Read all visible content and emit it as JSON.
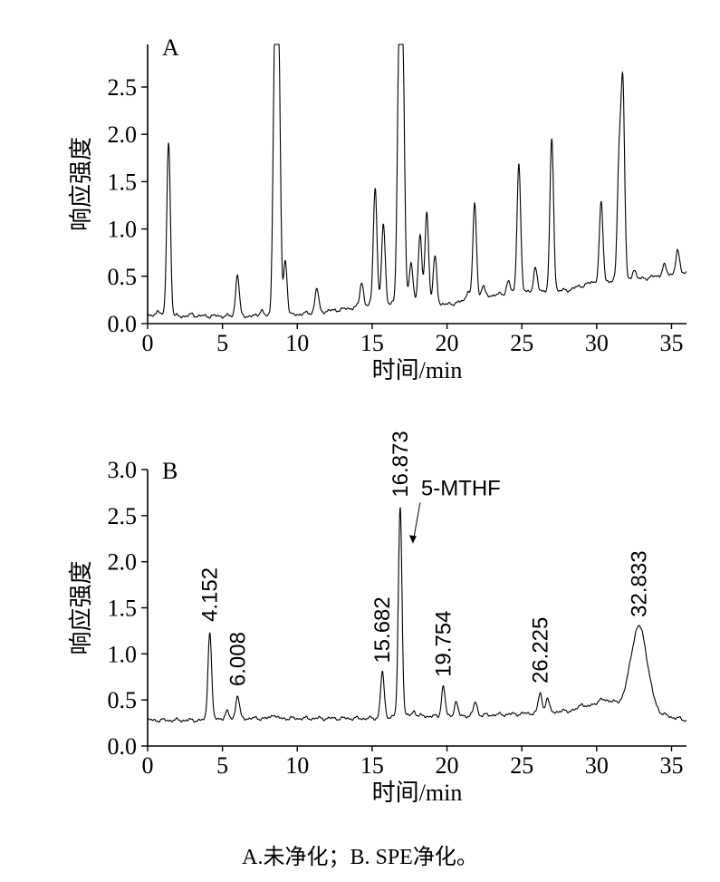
{
  "caption": "A.未净化；B. SPE净化。",
  "chart_data": [
    {
      "type": "line",
      "panel_label": "A",
      "xlabel": "时间/min",
      "ylabel": "响应强度",
      "xlim": [
        0,
        36
      ],
      "ylim": [
        0,
        2.95
      ],
      "xticks": [
        0,
        5,
        10,
        15,
        20,
        25,
        30,
        35
      ],
      "yticks": [
        0.0,
        0.5,
        1.0,
        1.5,
        2.0,
        2.5
      ],
      "ytick_labels": [
        "0.0",
        "0.5",
        "1.0",
        "1.5",
        "2.0",
        "2.5"
      ],
      "baseline": [
        [
          0,
          0.08
        ],
        [
          6,
          0.08
        ],
        [
          9,
          0.08
        ],
        [
          13,
          0.15
        ],
        [
          15,
          0.2
        ],
        [
          18,
          0.25
        ],
        [
          20,
          0.2
        ],
        [
          23,
          0.3
        ],
        [
          26,
          0.35
        ],
        [
          28,
          0.35
        ],
        [
          30,
          0.45
        ],
        [
          32,
          0.45
        ],
        [
          34,
          0.5
        ],
        [
          36,
          0.55
        ]
      ],
      "peaks": [
        {
          "t": 0.7,
          "h": 0.15
        },
        {
          "t": 1.4,
          "h": 1.92
        },
        {
          "t": 3.0,
          "h": 0.1
        },
        {
          "t": 6.0,
          "h": 0.52
        },
        {
          "t": 7.6,
          "h": 0.15
        },
        {
          "t": 8.5,
          "h": 2.95
        },
        {
          "t": 8.75,
          "h": 2.95
        },
        {
          "t": 9.2,
          "h": 0.67
        },
        {
          "t": 11.3,
          "h": 0.37
        },
        {
          "t": 14.3,
          "h": 0.44
        },
        {
          "t": 15.2,
          "h": 1.45
        },
        {
          "t": 15.75,
          "h": 1.04
        },
        {
          "t": 16.8,
          "h": 2.87
        },
        {
          "t": 17.05,
          "h": 2.79
        },
        {
          "t": 17.6,
          "h": 0.64
        },
        {
          "t": 18.2,
          "h": 0.92
        },
        {
          "t": 18.65,
          "h": 1.18
        },
        {
          "t": 19.2,
          "h": 0.7
        },
        {
          "t": 21.4,
          "h": 0.35
        },
        {
          "t": 21.85,
          "h": 1.27
        },
        {
          "t": 22.4,
          "h": 0.4
        },
        {
          "t": 24.1,
          "h": 0.45
        },
        {
          "t": 24.8,
          "h": 1.7
        },
        {
          "t": 25.9,
          "h": 0.58
        },
        {
          "t": 27.0,
          "h": 1.95
        },
        {
          "t": 30.3,
          "h": 1.27
        },
        {
          "t": 31.5,
          "h": 1.72
        },
        {
          "t": 31.75,
          "h": 2.48
        },
        {
          "t": 32.5,
          "h": 0.58
        },
        {
          "t": 34.5,
          "h": 0.62
        },
        {
          "t": 35.4,
          "h": 0.77
        }
      ]
    },
    {
      "type": "line",
      "panel_label": "B",
      "xlabel": "时间/min",
      "ylabel": "响应强度",
      "xlim": [
        0,
        36
      ],
      "ylim": [
        0,
        3.0
      ],
      "xticks": [
        0,
        5,
        10,
        15,
        20,
        25,
        30,
        35
      ],
      "yticks": [
        0.0,
        0.5,
        1.0,
        1.5,
        2.0,
        2.5,
        3.0
      ],
      "ytick_labels": [
        "0.0",
        "0.5",
        "1.0",
        "1.5",
        "2.0",
        "2.5",
        "3.0"
      ],
      "baseline": [
        [
          0,
          0.28
        ],
        [
          4,
          0.28
        ],
        [
          5,
          0.3
        ],
        [
          8,
          0.3
        ],
        [
          15,
          0.3
        ],
        [
          17,
          0.33
        ],
        [
          20,
          0.32
        ],
        [
          25,
          0.35
        ],
        [
          28,
          0.38
        ],
        [
          31,
          0.45
        ],
        [
          34,
          0.35
        ],
        [
          36,
          0.28
        ]
      ],
      "peaks": [
        {
          "t": 4.152,
          "h": 1.25
        },
        {
          "t": 5.3,
          "h": 0.37
        },
        {
          "t": 6.008,
          "h": 0.55
        },
        {
          "t": 8.4,
          "h": 0.35
        },
        {
          "t": 15.682,
          "h": 0.8
        },
        {
          "t": 16.873,
          "h": 2.6
        },
        {
          "t": 17.8,
          "h": 0.38
        },
        {
          "t": 19.754,
          "h": 0.65
        },
        {
          "t": 20.6,
          "h": 0.48
        },
        {
          "t": 21.9,
          "h": 0.48
        },
        {
          "t": 26.225,
          "h": 0.58
        },
        {
          "t": 26.7,
          "h": 0.52
        },
        {
          "t": 29.0,
          "h": 0.47
        },
        {
          "t": 30.4,
          "h": 0.5
        },
        {
          "t": 32.833,
          "h": 1.3
        }
      ],
      "peak_labels": [
        {
          "text": "4.152",
          "t": 4.152,
          "h": 1.25
        },
        {
          "text": "6.008",
          "t": 6.008,
          "h": 0.55
        },
        {
          "text": "15.682",
          "t": 15.682,
          "h": 0.8
        },
        {
          "text": "16.873",
          "t": 16.873,
          "h": 2.6
        },
        {
          "text": "19.754",
          "t": 19.754,
          "h": 0.65
        },
        {
          "text": "26.225",
          "t": 26.225,
          "h": 0.58
        },
        {
          "text": "32.833",
          "t": 32.833,
          "h": 1.3
        }
      ],
      "annotation": {
        "text": "5-MTHF",
        "target_t": 16.873,
        "target_h": 2.2
      }
    }
  ]
}
